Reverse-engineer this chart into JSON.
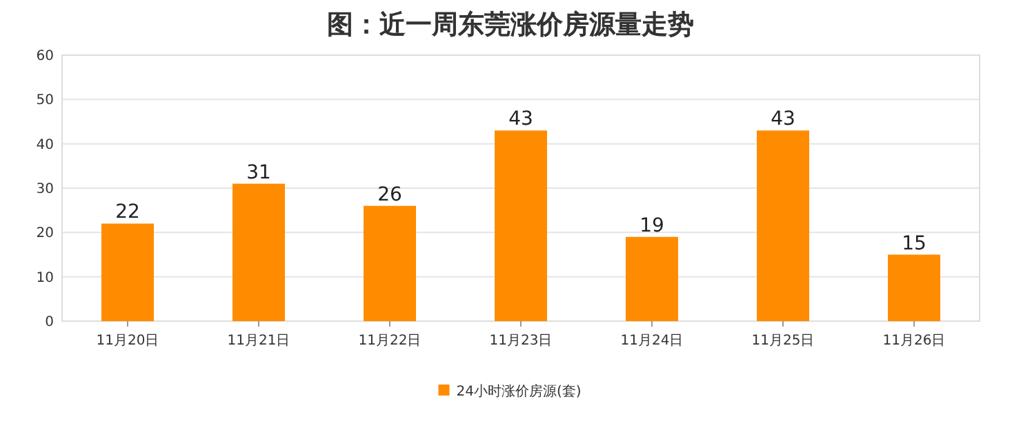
{
  "chart_data": {
    "type": "bar",
    "title": "图：近一周东莞涨价房源量走势",
    "categories": [
      "11月20日",
      "11月21日",
      "11月22日",
      "11月23日",
      "11月24日",
      "11月25日",
      "11月26日"
    ],
    "series": [
      {
        "name": "24小时涨价房源(套)",
        "color": "#ff8c00",
        "values": [
          22,
          31,
          26,
          43,
          19,
          43,
          15
        ]
      }
    ],
    "ylim": [
      0,
      60
    ],
    "yticks": [
      0,
      10,
      20,
      30,
      40,
      50,
      60
    ],
    "grid": "y",
    "legend": "bottom",
    "data_labels": true
  }
}
